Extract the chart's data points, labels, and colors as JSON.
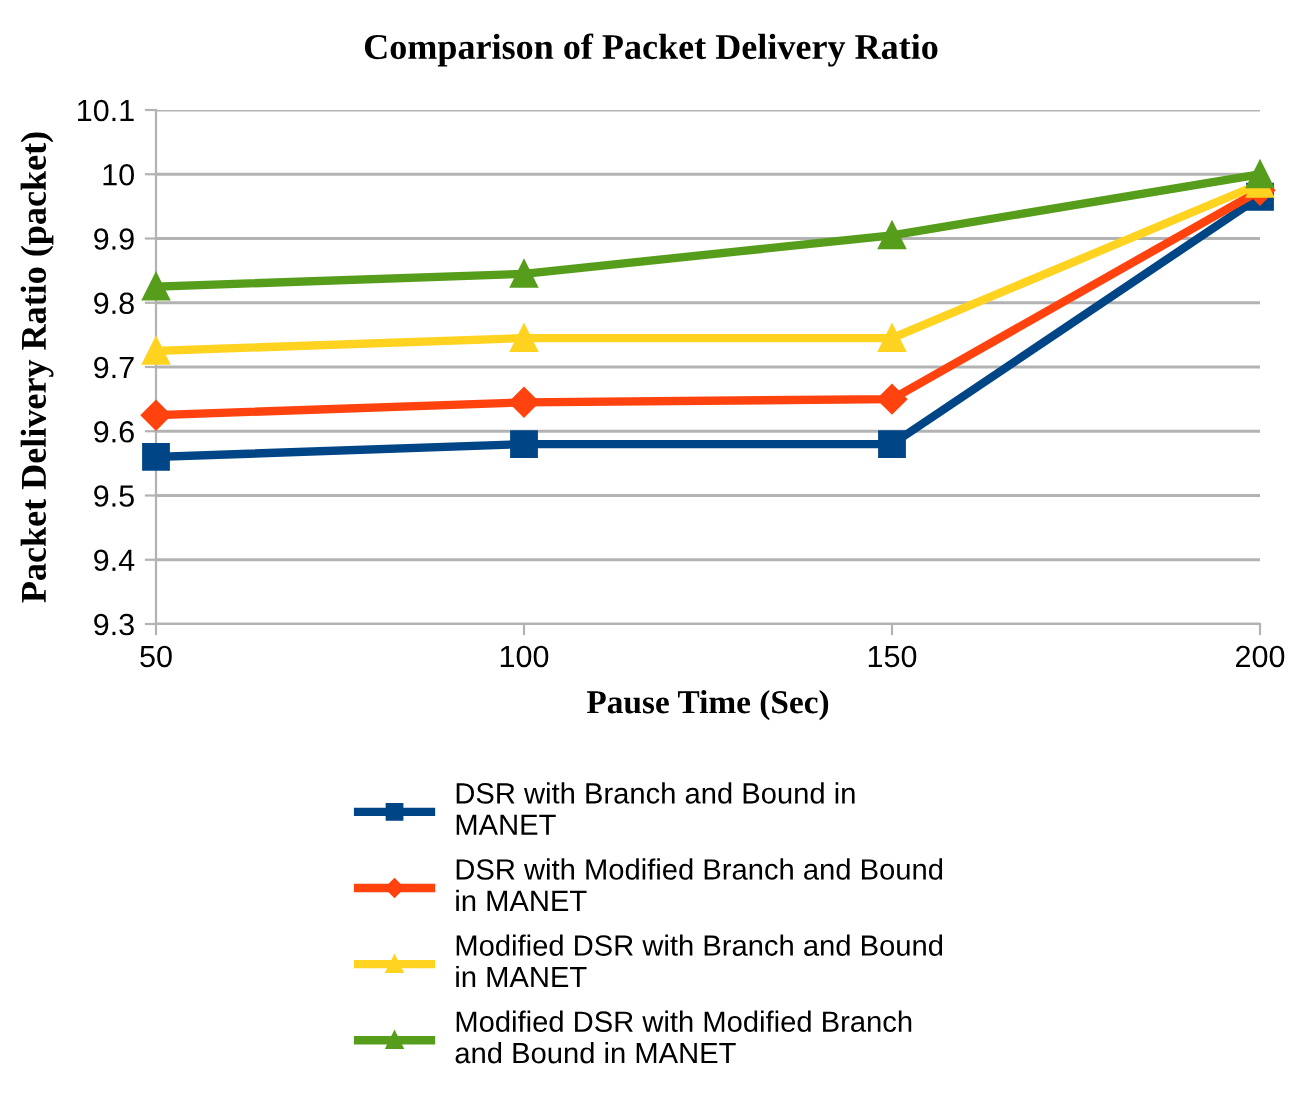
{
  "chart_data": {
    "type": "line",
    "title": "Comparison of Packet Delivery Ratio",
    "xlabel": "Pause Time (Sec)",
    "ylabel": "Packet Delivery Ratio (packet)",
    "x": [
      50,
      100,
      150,
      200
    ],
    "xlim": [
      50,
      200
    ],
    "xticks": [
      50,
      100,
      150,
      200
    ],
    "ylim": [
      9.3,
      10.1
    ],
    "yticks": [
      9.3,
      9.4,
      9.5,
      9.6,
      9.7,
      9.8,
      9.9,
      10,
      10.1
    ],
    "grid": "y",
    "legend": "bottom",
    "line_style": "solid",
    "series": [
      {
        "name": "DSR with Branch and Bound in\nMANET",
        "color": "#004586",
        "marker": "square",
        "values": [
          9.56,
          9.58,
          9.58,
          9.965
        ]
      },
      {
        "name": "DSR with Modified Branch and Bound\nin MANET",
        "color": "#ff420e",
        "marker": "diamond",
        "values": [
          9.625,
          9.645,
          9.65,
          9.975
        ]
      },
      {
        "name": "Modified DSR with Branch and Bound\nin MANET",
        "color": "#ffd320",
        "marker": "triangle",
        "values": [
          9.725,
          9.745,
          9.745,
          9.985
        ]
      },
      {
        "name": "Modified DSR with Modified Branch\nand Bound in MANET",
        "color": "#579d1c",
        "marker": "triangle",
        "values": [
          9.825,
          9.845,
          9.905,
          10.0
        ]
      }
    ]
  }
}
